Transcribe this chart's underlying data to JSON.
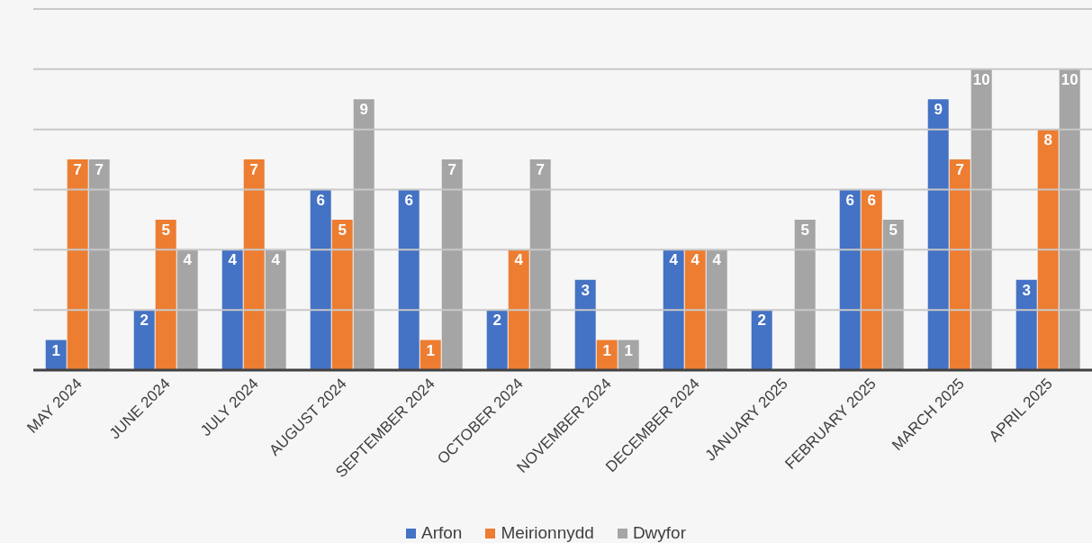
{
  "chart_data": {
    "type": "bar",
    "categories": [
      "MAY 2024",
      "JUNE 2024",
      "JULY 2024",
      "AUGUST 2024",
      "SEPTEMBER 2024",
      "OCTOBER 2024",
      "NOVEMBER 2024",
      "DECEMBER 2024",
      "JANUARY 2025",
      "FEBRUARY 2025",
      "MARCH 2025",
      "APRIL 2025"
    ],
    "series": [
      {
        "name": "Arfon",
        "color": "#4472c4",
        "values": [
          1,
          2,
          4,
          6,
          6,
          2,
          3,
          4,
          2,
          6,
          9,
          3
        ]
      },
      {
        "name": "Meirionnydd",
        "color": "#ed7d31",
        "values": [
          7,
          5,
          7,
          5,
          1,
          4,
          1,
          4,
          null,
          6,
          7,
          8
        ]
      },
      {
        "name": "Dwyfor",
        "color": "#a5a5a5",
        "values": [
          7,
          4,
          4,
          9,
          7,
          7,
          1,
          4,
          5,
          5,
          10,
          10
        ]
      }
    ],
    "ylim": [
      0,
      12
    ],
    "yticks": [
      {
        "value": 0,
        "label": null
      },
      {
        "value": 2,
        "label": null
      },
      {
        "value": 4,
        "label": null
      },
      {
        "value": 6,
        "label": null
      },
      {
        "value": 8,
        "label": null
      },
      {
        "value": 10,
        "label": null
      },
      {
        "value": 12,
        "label": null
      }
    ],
    "grid": "y",
    "tick_labels": "x",
    "data_labels": true,
    "legend": "bottom"
  }
}
